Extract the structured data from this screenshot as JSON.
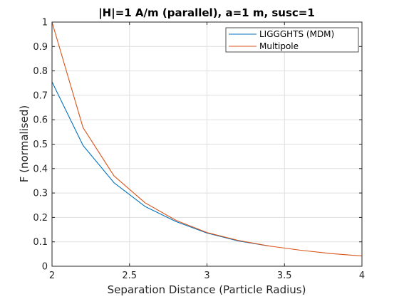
{
  "chart_data": {
    "type": "line",
    "title": "|H|=1 A/m (parallel), a=1 m, susc=1",
    "xlabel": "Separation Distance (Particle Radius)",
    "ylabel": "F (normalised)",
    "xlim": [
      2,
      4
    ],
    "ylim": [
      0,
      1
    ],
    "xticks": [
      2,
      2.5,
      3,
      3.5,
      4
    ],
    "xtick_labels": [
      "2",
      "2.5",
      "3",
      "3.5",
      "4"
    ],
    "yticks": [
      0,
      0.1,
      0.2,
      0.3,
      0.4,
      0.5,
      0.6,
      0.7,
      0.8,
      0.9,
      1
    ],
    "ytick_labels": [
      "0",
      "0.1",
      "0.2",
      "0.3",
      "0.4",
      "0.5",
      "0.6",
      "0.7",
      "0.8",
      "0.9",
      "1"
    ],
    "grid": true,
    "legend_position": "top-right",
    "series": [
      {
        "name": "LIGGGHTS (MDM)",
        "color": "#0072bd",
        "x": [
          2,
          2.2,
          2.4,
          2.6,
          2.8,
          3,
          3.2,
          3.4
        ],
        "y": [
          0.755,
          0.495,
          0.342,
          0.245,
          0.183,
          0.136,
          0.104,
          0.083
        ]
      },
      {
        "name": "Multipole",
        "color": "#d95319",
        "x": [
          2,
          2.2,
          2.4,
          2.6,
          2.8,
          3,
          3.2,
          3.4,
          3.6,
          3.8,
          4
        ],
        "y": [
          1.0,
          0.568,
          0.37,
          0.26,
          0.188,
          0.138,
          0.106,
          0.083,
          0.066,
          0.052,
          0.042
        ]
      }
    ]
  }
}
